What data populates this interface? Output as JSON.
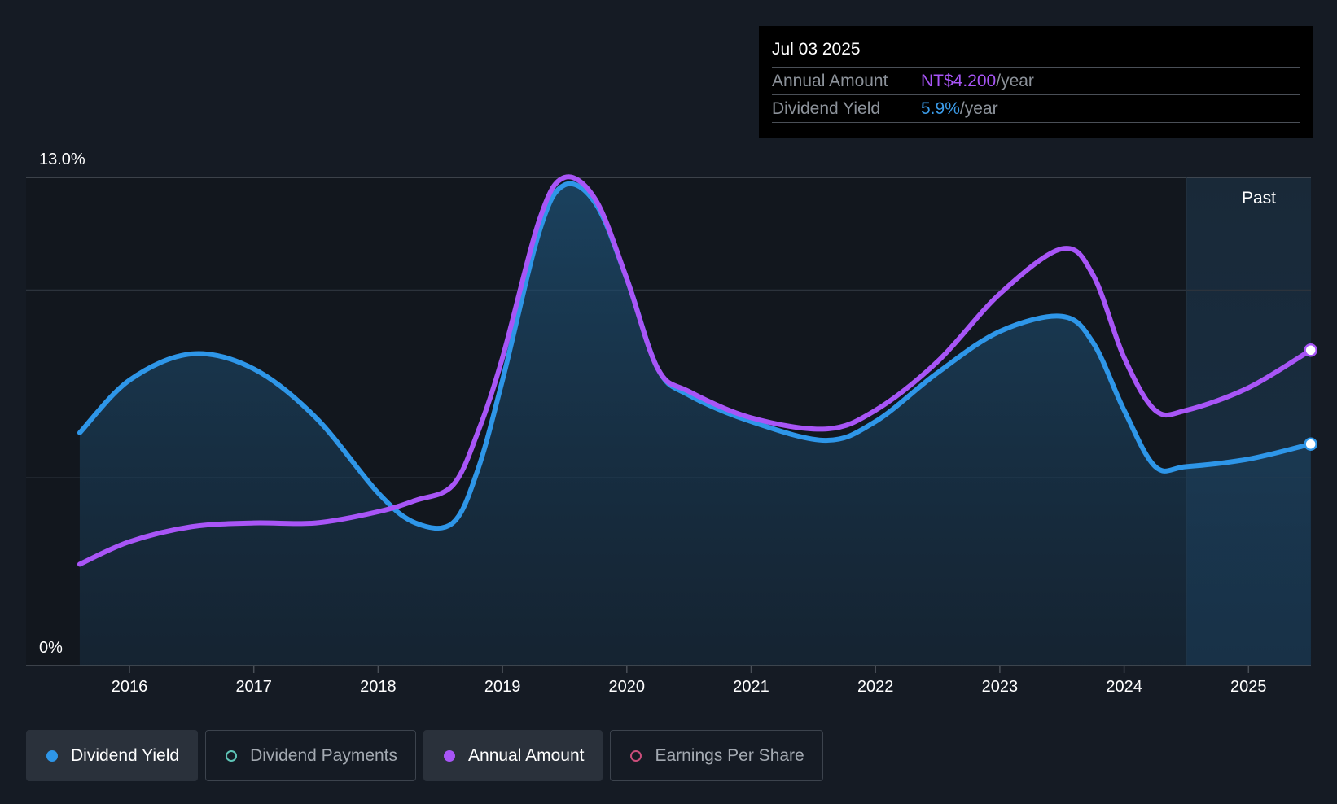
{
  "tooltip": {
    "date": "Jul 03 2025",
    "rows": [
      {
        "label": "Annual Amount",
        "value": "NT$4.200",
        "unit": "/year",
        "color": "#a855f7"
      },
      {
        "label": "Dividend Yield",
        "value": "5.9%",
        "unit": "/year",
        "color": "#3b9be8"
      }
    ]
  },
  "legend": [
    {
      "label": "Dividend Yield",
      "color": "#2e96e8",
      "filled": true,
      "active": true
    },
    {
      "label": "Dividend Payments",
      "color": "#5ec4b6",
      "filled": false,
      "active": false
    },
    {
      "label": "Annual Amount",
      "color": "#a855f7",
      "filled": true,
      "active": true
    },
    {
      "label": "Earnings Per Share",
      "color": "#c94d7a",
      "filled": false,
      "active": false
    }
  ],
  "chart_data": {
    "type": "line",
    "past_label": "Past",
    "y_tick_labels": [
      "13.0%",
      "0%"
    ],
    "ylim": [
      0,
      13
    ],
    "xlim": [
      2015.4,
      2025.5
    ],
    "x_ticks": [
      2016,
      2017,
      2018,
      2019,
      2020,
      2021,
      2022,
      2023,
      2024,
      2025
    ],
    "gridlines_y": [
      13,
      10,
      5
    ],
    "past_start": 2024.5,
    "series": [
      {
        "name": "Dividend Yield",
        "color": "#2e96e8",
        "area": true,
        "x": [
          2015.6,
          2016.0,
          2016.5,
          2017.0,
          2017.5,
          2018.0,
          2018.3,
          2018.6,
          2018.8,
          2019.0,
          2019.3,
          2019.5,
          2019.75,
          2020.0,
          2020.25,
          2020.5,
          2021.0,
          2021.6,
          2022.0,
          2022.5,
          2023.0,
          2023.5,
          2023.75,
          2024.0,
          2024.25,
          2024.5,
          2025.0,
          2025.5
        ],
        "y": [
          6.2,
          7.6,
          8.3,
          7.9,
          6.6,
          4.6,
          3.8,
          3.8,
          5.2,
          7.6,
          11.6,
          12.8,
          12.3,
          10.3,
          7.9,
          7.2,
          6.5,
          6.0,
          6.5,
          7.8,
          8.9,
          9.3,
          8.6,
          6.8,
          5.3,
          5.3,
          5.5,
          5.9
        ]
      },
      {
        "name": "Annual Amount",
        "color": "#a855f7",
        "area": false,
        "x": [
          2015.6,
          2016.0,
          2016.5,
          2017.0,
          2017.5,
          2018.0,
          2018.3,
          2018.6,
          2018.8,
          2019.0,
          2019.3,
          2019.5,
          2019.75,
          2020.0,
          2020.25,
          2020.5,
          2021.0,
          2021.6,
          2022.0,
          2022.5,
          2023.0,
          2023.5,
          2023.75,
          2024.0,
          2024.25,
          2024.5,
          2025.0,
          2025.5
        ],
        "y": [
          2.7,
          3.3,
          3.7,
          3.8,
          3.8,
          4.1,
          4.4,
          4.8,
          6.2,
          8.2,
          11.9,
          13.0,
          12.4,
          10.3,
          7.9,
          7.3,
          6.6,
          6.3,
          6.8,
          8.1,
          9.9,
          11.1,
          10.4,
          8.2,
          6.8,
          6.8,
          7.4,
          8.4
        ]
      }
    ]
  }
}
